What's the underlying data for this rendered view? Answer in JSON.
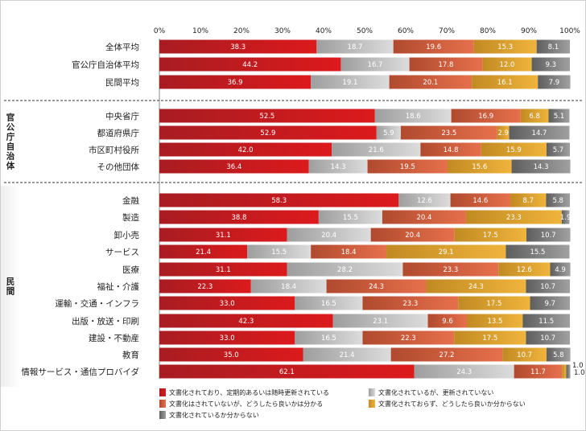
{
  "chart_data": {
    "type": "bar",
    "orientation": "horizontal-stacked-100",
    "xlim": [
      0,
      100
    ],
    "xticks": [
      "0%",
      "10%",
      "20%",
      "30%",
      "40%",
      "50%",
      "60%",
      "70%",
      "80%",
      "90%",
      "100%"
    ],
    "series": [
      {
        "name": "文書化されており、定期的あるいは随時更新されている",
        "color": "#d21a1e"
      },
      {
        "name": "文書化されているが、更新されていない",
        "color": "#b4b4b4"
      },
      {
        "name": "文書化はされていないが、どうしたら良いかは分かる",
        "color": "#d65a3a"
      },
      {
        "name": "文書化されておらず、どうしたら良いか分からない",
        "color": "#e0a12c"
      },
      {
        "name": "文書化されているか分からない",
        "color": "#7a7a7a"
      }
    ],
    "groups": [
      {
        "label": "",
        "rows": [
          {
            "category": "全体平均",
            "values": [
              38.3,
              18.7,
              19.6,
              15.3,
              8.1
            ]
          },
          {
            "category": "官公庁自治体平均",
            "values": [
              44.2,
              16.7,
              17.8,
              12.0,
              9.3
            ]
          },
          {
            "category": "民間平均",
            "values": [
              36.9,
              19.1,
              20.1,
              16.1,
              7.9
            ]
          }
        ]
      },
      {
        "label": "官公庁自治体",
        "rows": [
          {
            "category": "中央省庁",
            "values": [
              52.5,
              18.6,
              16.9,
              6.8,
              5.1
            ]
          },
          {
            "category": "都道府県庁",
            "values": [
              52.9,
              5.9,
              23.5,
              2.9,
              14.7
            ]
          },
          {
            "category": "市区町村役所",
            "values": [
              42.0,
              21.6,
              14.8,
              15.9,
              5.7
            ]
          },
          {
            "category": "その他団体",
            "values": [
              36.4,
              14.3,
              19.5,
              15.6,
              14.3
            ]
          }
        ]
      },
      {
        "label": "民間",
        "rows": [
          {
            "category": "金融",
            "values": [
              58.3,
              12.6,
              14.6,
              8.7,
              5.8
            ]
          },
          {
            "category": "製造",
            "values": [
              38.8,
              15.5,
              20.4,
              23.3,
              1.9
            ]
          },
          {
            "category": "卸小売",
            "values": [
              31.1,
              20.4,
              20.4,
              17.5,
              10.7
            ]
          },
          {
            "category": "サービス",
            "values": [
              21.4,
              15.5,
              18.4,
              29.1,
              15.5
            ]
          },
          {
            "category": "医療",
            "values": [
              31.1,
              28.2,
              23.3,
              12.6,
              4.9
            ]
          },
          {
            "category": "福祉・介護",
            "values": [
              22.3,
              18.4,
              24.3,
              24.3,
              10.7
            ]
          },
          {
            "category": "運輸・交通・インフラ",
            "values": [
              33.0,
              16.5,
              23.3,
              17.5,
              9.7
            ]
          },
          {
            "category": "出版・放送・印刷",
            "values": [
              42.3,
              23.1,
              9.6,
              13.5,
              11.5
            ]
          },
          {
            "category": "建設・不動産",
            "values": [
              33.0,
              16.5,
              22.3,
              17.5,
              10.7
            ]
          },
          {
            "category": "教育",
            "values": [
              35.0,
              21.4,
              27.2,
              10.7,
              5.8
            ]
          },
          {
            "category": "情報サービス・通信プロバイダ",
            "values": [
              62.1,
              24.3,
              11.7,
              1.0,
              1.0
            ]
          }
        ]
      }
    ]
  }
}
